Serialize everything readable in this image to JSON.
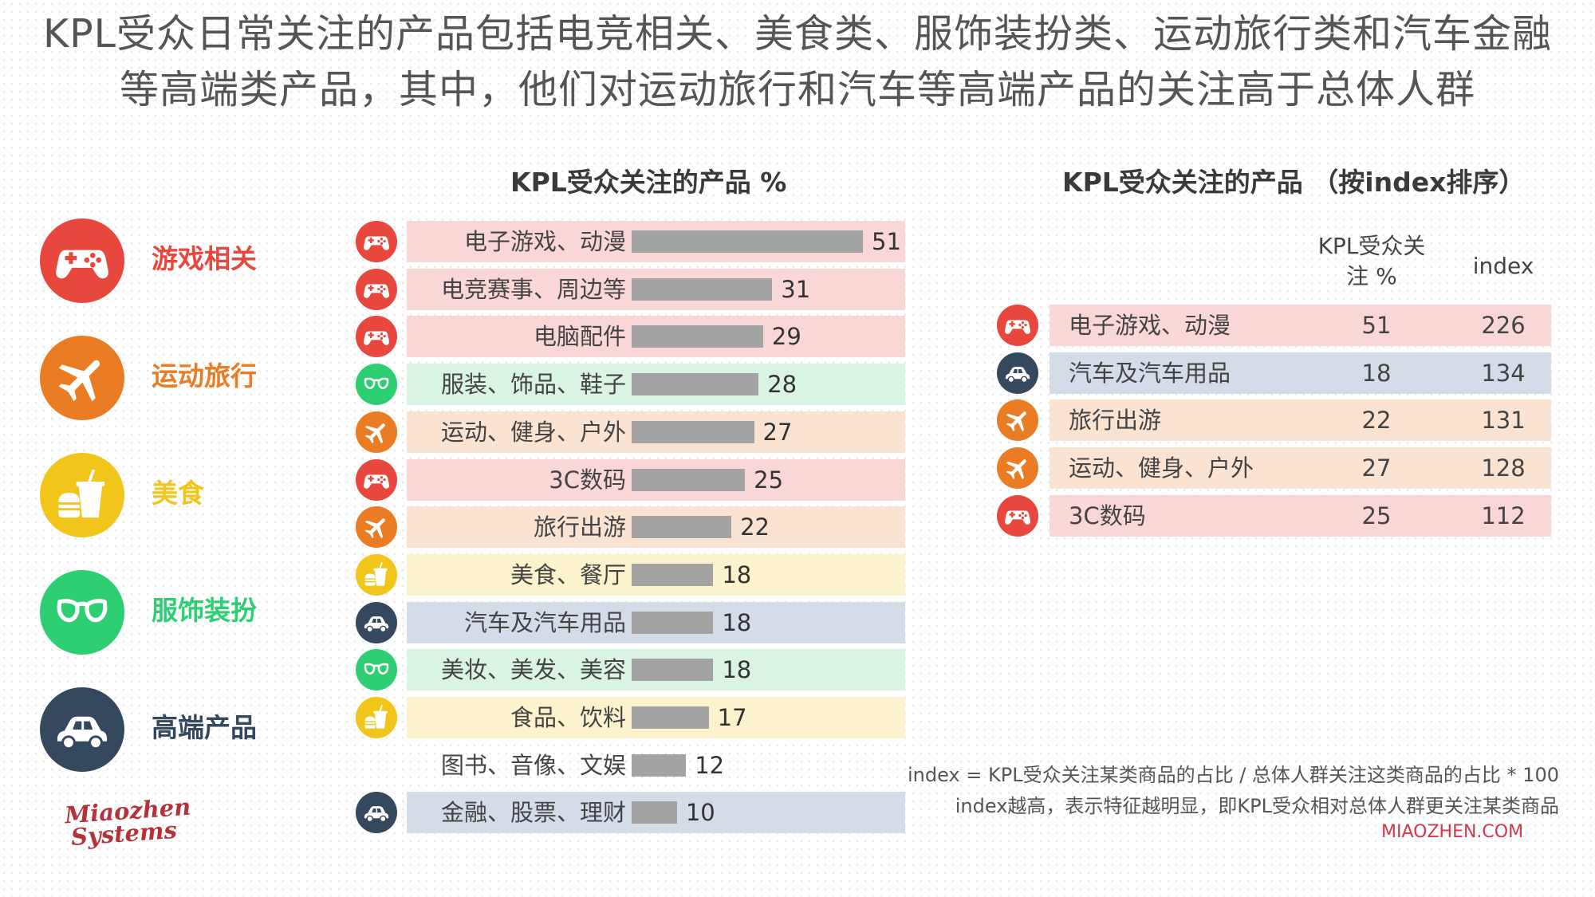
{
  "headline": {
    "line1": "KPL受众日常关注的产品包括电竞相关、美食类、服饰装扮类、运动旅行类和汽车金融",
    "line2": "等高端类产品，其中，他们对运动旅行和汽车等高端产品的关注高于总体人群"
  },
  "colors": {
    "game": "#e8473e",
    "sport": "#ea7c24",
    "food": "#f2c51a",
    "fashion": "#2ecf73",
    "luxury": "#34495e",
    "bar": "#a3a3a3",
    "bg_game": "#fad7d7",
    "bg_sport": "#fbe3d1",
    "bg_food": "#fcf2cd",
    "bg_fashion": "#d9f4e3",
    "bg_luxury": "#d4dde7"
  },
  "legend": [
    {
      "label": "游戏相关",
      "icon": "gamepad-icon",
      "category": "game"
    },
    {
      "label": "运动旅行",
      "icon": "airplane-icon",
      "category": "sport"
    },
    {
      "label": "美食",
      "icon": "food-drink-icon",
      "category": "food"
    },
    {
      "label": "服饰装扮",
      "icon": "glasses-icon",
      "category": "fashion"
    },
    {
      "label": "高端产品",
      "icon": "car-icon",
      "category": "luxury"
    }
  ],
  "chart_data": [
    {
      "type": "bar",
      "orientation": "horizontal",
      "title": "KPL受众关注的产品 %",
      "categories": [
        "电子游戏、动漫",
        "电竞赛事、周边等",
        "电脑配件",
        "服装、饰品、鞋子",
        "运动、健身、户外",
        "3C数码",
        "旅行出游",
        "美食、餐厅",
        "汽车及汽车用品",
        "美妆、美发、美容",
        "食品、饮料",
        "图书、音像、文娱",
        "金融、股票、理财"
      ],
      "values": [
        51,
        31,
        29,
        28,
        27,
        25,
        22,
        18,
        18,
        18,
        17,
        12,
        10
      ],
      "groups": [
        "game",
        "game",
        "game",
        "fashion",
        "sport",
        "game",
        "sport",
        "food",
        "luxury",
        "fashion",
        "food",
        "none",
        "luxury"
      ],
      "xlim": [
        0,
        51
      ]
    },
    {
      "type": "table",
      "title": "KPL受众关注的产品 （按index排序）",
      "columns": [
        "KPL受众关注 %",
        "index"
      ],
      "rows": [
        {
          "label": "电子游戏、动漫",
          "pct": 51,
          "index": 226,
          "group": "game"
        },
        {
          "label": "汽车及汽车用品",
          "pct": 18,
          "index": 134,
          "group": "luxury"
        },
        {
          "label": "旅行出游",
          "pct": 22,
          "index": 131,
          "group": "sport"
        },
        {
          "label": "运动、健身、户外",
          "pct": 27,
          "index": 128,
          "group": "sport"
        },
        {
          "label": "3C数码",
          "pct": 25,
          "index": 112,
          "group": "game"
        }
      ]
    }
  ],
  "table_head": {
    "col1_line1": "KPL受众关",
    "col1_line2": "注 %",
    "col2": "index"
  },
  "notes": {
    "formula": "index = KPL受众关注某类商品的占比 / 总体人群关注这类商品的占比 * 100",
    "explain": "index越高，表示特征越明显，即KPL受众相对总体人群更关注某类商品",
    "site": "MIAOZHEN.COM"
  },
  "logo": {
    "line1": "Miaozhen",
    "line2": "Systems"
  }
}
